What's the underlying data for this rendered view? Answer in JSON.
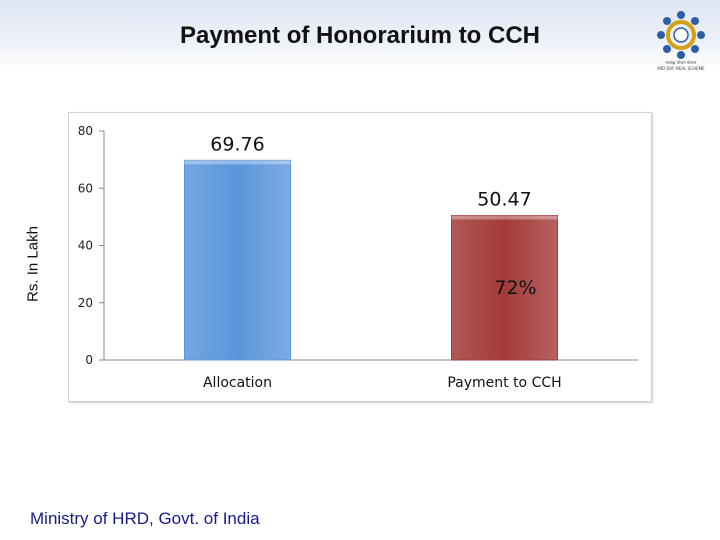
{
  "slide": {
    "title": "Payment of Honorarium to CCH",
    "footer": "Ministry of HRD, Govt. of India",
    "logo_text_line1": "मध्याह्न भोजन योजना",
    "logo_text_line2": "MID DAY MEAL SCHEME"
  },
  "chart_data": {
    "type": "bar",
    "title": "",
    "xlabel": "",
    "ylabel": "Rs. In Lakh",
    "ylim": [
      0,
      80
    ],
    "yticks": [
      0,
      20,
      40,
      60,
      80
    ],
    "grid": false,
    "legend": "none",
    "categories": [
      "Allocation",
      "Payment to CCH"
    ],
    "values": [
      69.76,
      50.47
    ],
    "value_labels": [
      "69.76",
      "50.47"
    ],
    "bar_colors": [
      "#5b96dc",
      "#a33b38"
    ],
    "annotations": [
      {
        "category": "Payment to CCH",
        "text": "72%"
      }
    ]
  },
  "colors": {
    "accent_blue": "#5b96dc",
    "accent_red": "#a33b38",
    "footer_text": "#1a1a8c"
  }
}
